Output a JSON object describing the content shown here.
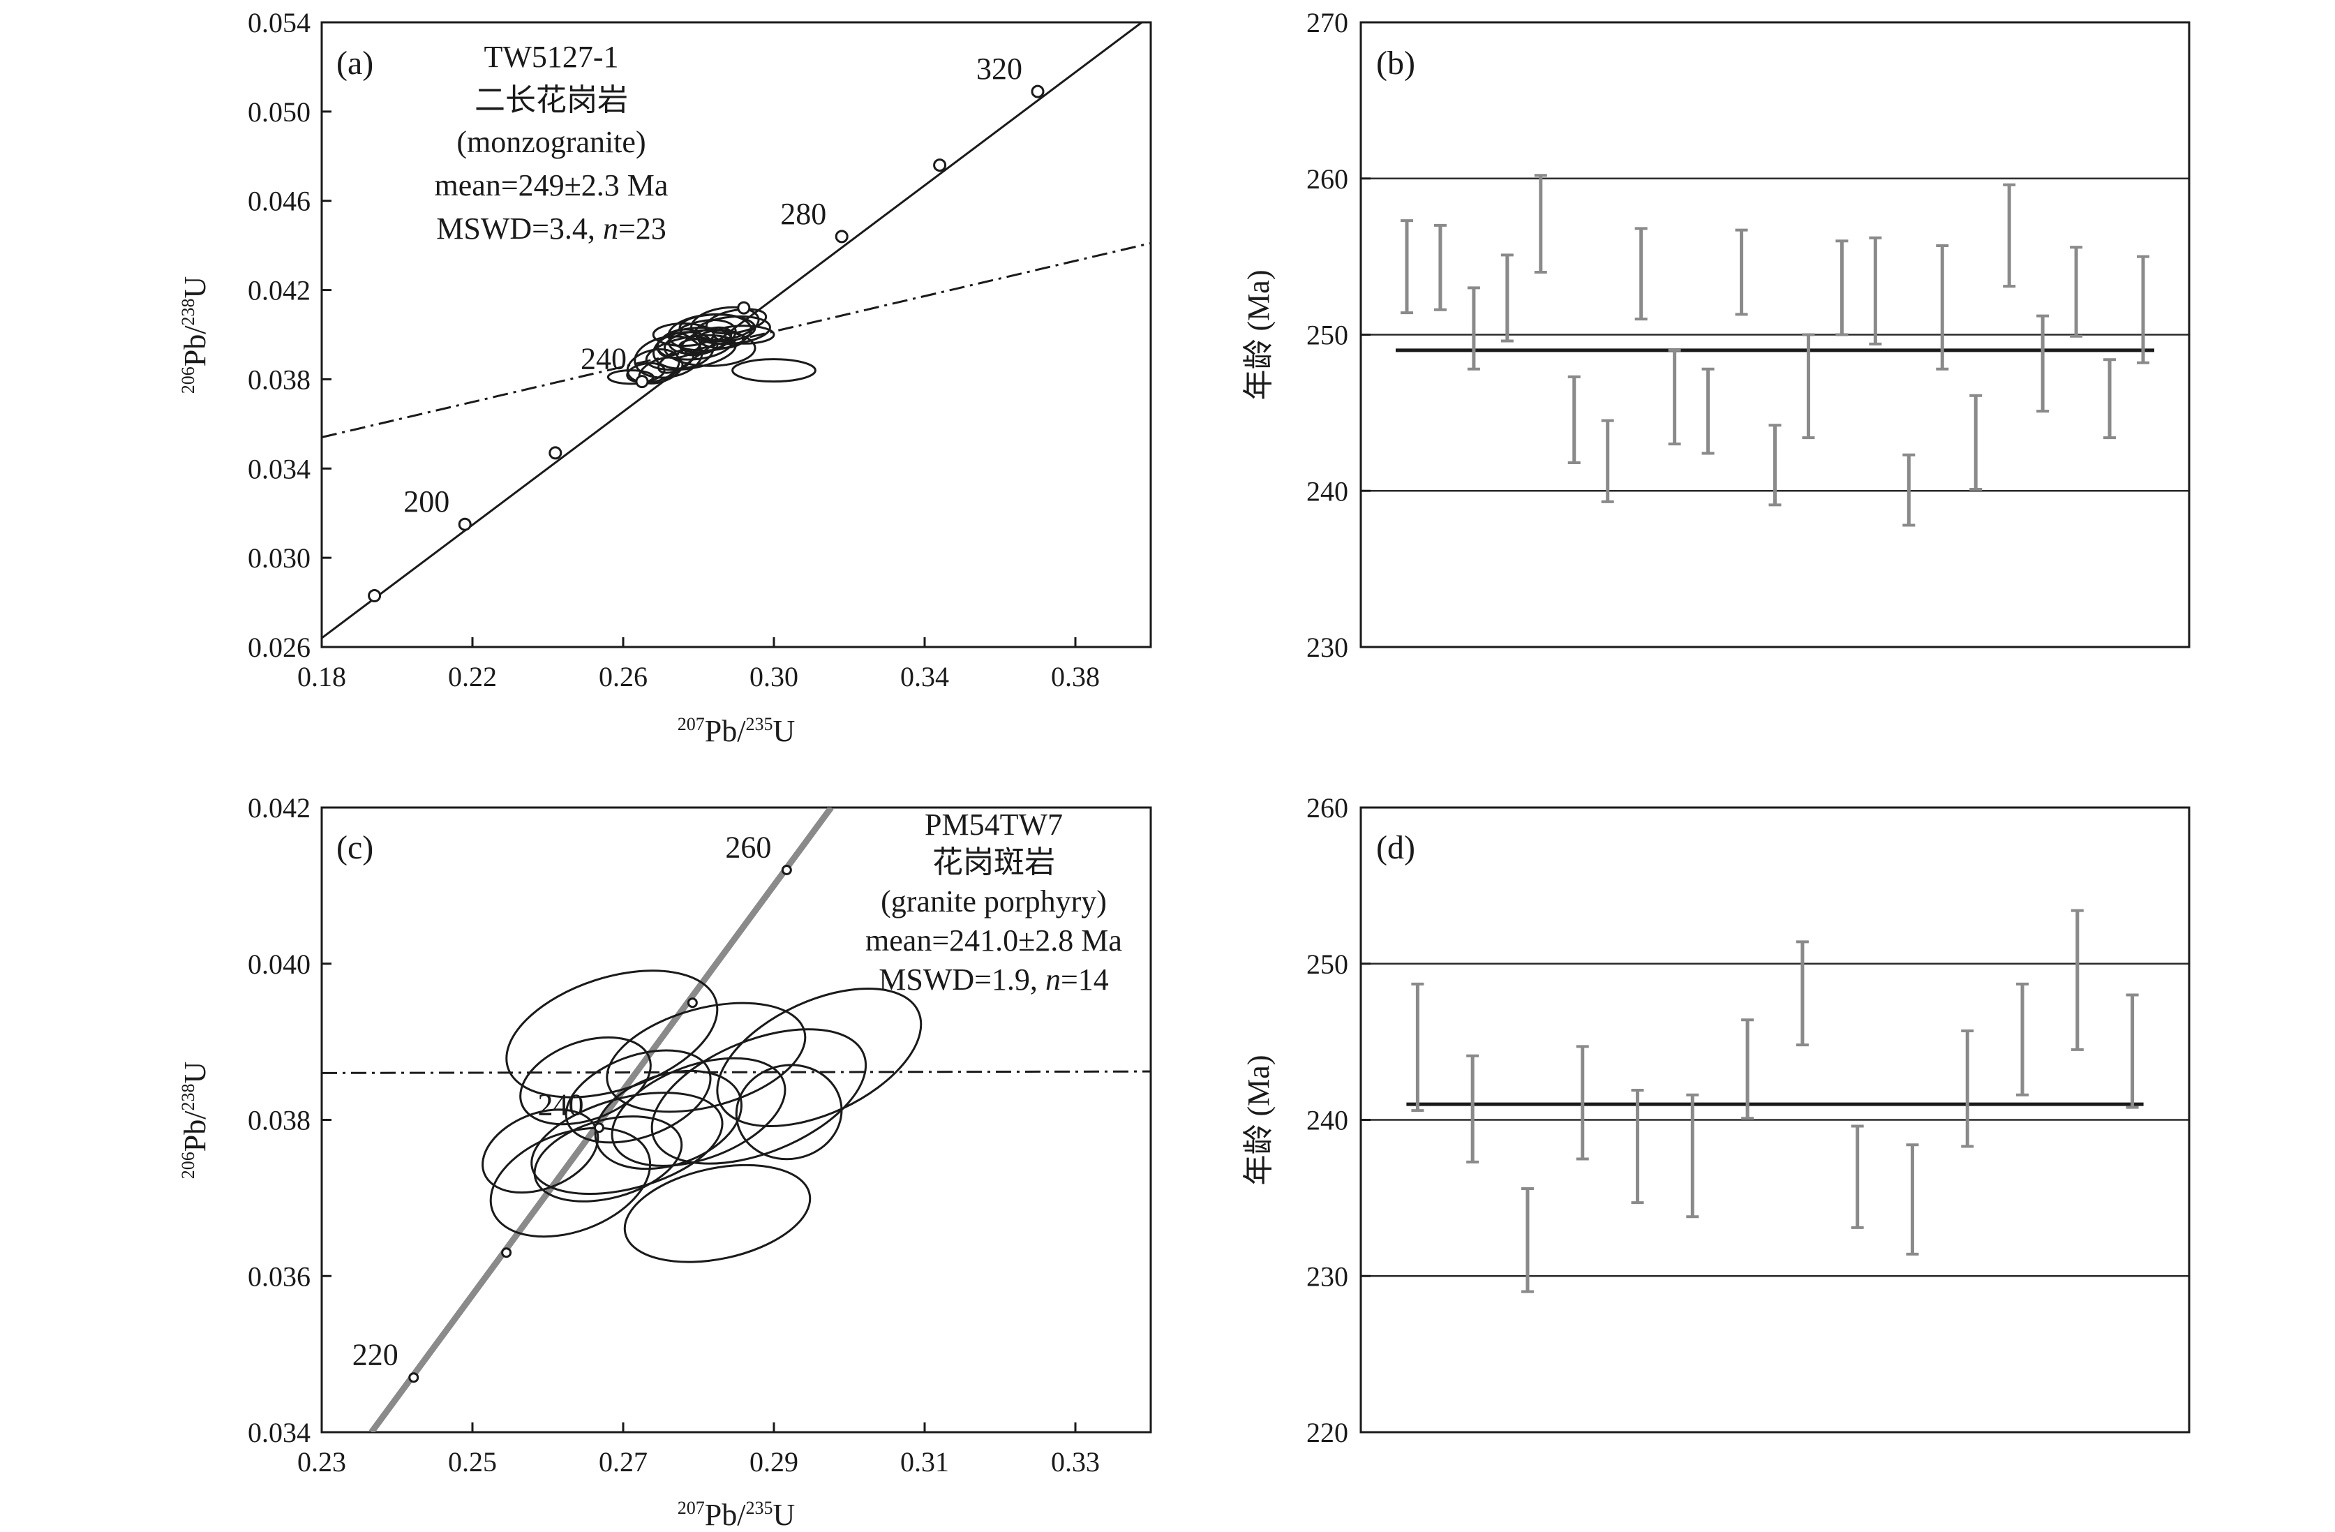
{
  "chart_data": [
    {
      "id": "a",
      "type": "concordia",
      "panel_label": "(a)",
      "xlabel": {
        "sup1": "207",
        "base1": "Pb/",
        "sup2": "235",
        "base2": "U"
      },
      "ylabel": {
        "sup1": "206",
        "base1": "Pb/",
        "sup2": "238",
        "base2": "U"
      },
      "xlim": [
        0.18,
        0.4
      ],
      "ylim": [
        0.026,
        0.054
      ],
      "xticks": [
        "0.18",
        "0.22",
        "0.26",
        "0.30",
        "0.34",
        "0.38"
      ],
      "yticks": [
        "0.026",
        "0.030",
        "0.034",
        "0.038",
        "0.042",
        "0.046",
        "0.050",
        "0.054"
      ],
      "annotation": [
        "TW5127-1",
        "二长花岗岩",
        "(monzogranite)",
        "mean=249±2.3 Ma"
      ],
      "annotation_mswd": {
        "prefix": "MSWD=3.4, ",
        "italic": "n",
        "suffix": "=23"
      },
      "concordia_points": [
        {
          "age": "180",
          "x": 0.194,
          "y": 0.0283,
          "label": ""
        },
        {
          "age": "200",
          "x": 0.218,
          "y": 0.0315,
          "label": "200"
        },
        {
          "age": "220",
          "x": 0.242,
          "y": 0.0347,
          "label": ""
        },
        {
          "age": "240",
          "x": 0.265,
          "y": 0.0379,
          "label": "240"
        },
        {
          "age": "260",
          "x": 0.292,
          "y": 0.0412,
          "label": ""
        },
        {
          "age": "280",
          "x": 0.318,
          "y": 0.0444,
          "label": "280"
        },
        {
          "age": "300",
          "x": 0.344,
          "y": 0.0476,
          "label": ""
        },
        {
          "age": "320",
          "x": 0.37,
          "y": 0.0509,
          "label": "320"
        }
      ],
      "concordia_line": [
        [
          0.18,
          0.0264
        ],
        [
          0.4,
          0.0543
        ]
      ],
      "discordia_line": [
        [
          0.18,
          0.0354
        ],
        [
          0.4,
          0.0441
        ]
      ],
      "ellipses": [
        {
          "x": 0.262,
          "y": 0.0381,
          "rx": 0.006,
          "ry": 0.0003,
          "angle": 0
        },
        {
          "x": 0.268,
          "y": 0.0386,
          "rx": 0.007,
          "ry": 0.0007,
          "angle": 15
        },
        {
          "x": 0.272,
          "y": 0.039,
          "rx": 0.009,
          "ry": 0.0009,
          "angle": 10
        },
        {
          "x": 0.276,
          "y": 0.0393,
          "rx": 0.008,
          "ry": 0.0008,
          "angle": 8
        },
        {
          "x": 0.279,
          "y": 0.0396,
          "rx": 0.01,
          "ry": 0.0007,
          "angle": 5
        },
        {
          "x": 0.281,
          "y": 0.0399,
          "rx": 0.009,
          "ry": 0.0007,
          "angle": 12
        },
        {
          "x": 0.283,
          "y": 0.0401,
          "rx": 0.011,
          "ry": 0.0008,
          "angle": 5
        },
        {
          "x": 0.285,
          "y": 0.0403,
          "rx": 0.01,
          "ry": 0.0006,
          "angle": 0
        },
        {
          "x": 0.287,
          "y": 0.0405,
          "rx": 0.009,
          "ry": 0.0007,
          "angle": 8
        },
        {
          "x": 0.289,
          "y": 0.0402,
          "rx": 0.01,
          "ry": 0.0006,
          "angle": 5
        },
        {
          "x": 0.278,
          "y": 0.0392,
          "rx": 0.012,
          "ry": 0.0007,
          "angle": 10
        },
        {
          "x": 0.283,
          "y": 0.0394,
          "rx": 0.012,
          "ry": 0.0008,
          "angle": 0
        },
        {
          "x": 0.276,
          "y": 0.04,
          "rx": 0.008,
          "ry": 0.0005,
          "angle": 0
        },
        {
          "x": 0.282,
          "y": 0.0397,
          "rx": 0.007,
          "ry": 0.0005,
          "angle": 20
        },
        {
          "x": 0.27,
          "y": 0.0384,
          "rx": 0.006,
          "ry": 0.0005,
          "angle": 20
        },
        {
          "x": 0.3,
          "y": 0.0384,
          "rx": 0.011,
          "ry": 0.0005,
          "angle": 0
        },
        {
          "x": 0.292,
          "y": 0.04,
          "rx": 0.008,
          "ry": 0.0004,
          "angle": 0
        },
        {
          "x": 0.286,
          "y": 0.0398,
          "rx": 0.006,
          "ry": 0.0004,
          "angle": 0
        },
        {
          "x": 0.274,
          "y": 0.0388,
          "rx": 0.005,
          "ry": 0.0004,
          "angle": 25
        },
        {
          "x": 0.28,
          "y": 0.0395,
          "rx": 0.005,
          "ry": 0.0003,
          "angle": 0
        },
        {
          "x": 0.29,
          "y": 0.0406,
          "rx": 0.008,
          "ry": 0.0005,
          "angle": 10
        },
        {
          "x": 0.275,
          "y": 0.0396,
          "rx": 0.006,
          "ry": 0.0006,
          "angle": 15
        },
        {
          "x": 0.266,
          "y": 0.0383,
          "rx": 0.005,
          "ry": 0.0004,
          "angle": 10
        }
      ]
    },
    {
      "id": "b",
      "type": "weighted-mean",
      "panel_label": "(b)",
      "ylabel": "年龄 (Ma)",
      "ylim": [
        230,
        270
      ],
      "yticks": [
        "230",
        "240",
        "250",
        "260",
        "270"
      ],
      "gridlines": [
        240,
        250,
        260
      ],
      "mean": 249,
      "errors": [
        [
          251.4,
          257.3
        ],
        [
          251.6,
          257.0
        ],
        [
          247.8,
          253.0
        ],
        [
          249.6,
          255.1
        ],
        [
          254.0,
          260.2
        ],
        [
          241.8,
          247.3
        ],
        [
          239.3,
          244.5
        ],
        [
          251.0,
          256.8
        ],
        [
          243.0,
          249.0
        ],
        [
          242.4,
          247.8
        ],
        [
          251.3,
          256.7
        ],
        [
          239.1,
          244.2
        ],
        [
          243.4,
          250.0
        ],
        [
          250.0,
          256.0
        ],
        [
          249.4,
          256.2
        ],
        [
          237.8,
          242.3
        ],
        [
          247.8,
          255.7
        ],
        [
          240.1,
          246.1
        ],
        [
          253.1,
          259.6
        ],
        [
          245.1,
          251.2
        ],
        [
          249.9,
          255.6
        ],
        [
          243.4,
          248.4
        ],
        [
          248.2,
          255.0
        ]
      ]
    },
    {
      "id": "c",
      "type": "concordia",
      "panel_label": "(c)",
      "xlabel": {
        "sup1": "207",
        "base1": "Pb/",
        "sup2": "235",
        "base2": "U"
      },
      "ylabel": {
        "sup1": "206",
        "base1": "Pb/",
        "sup2": "238",
        "base2": "U"
      },
      "xlim": [
        0.23,
        0.34
      ],
      "ylim": [
        0.034,
        0.042
      ],
      "xticks": [
        "0.23",
        "0.25",
        "0.27",
        "0.29",
        "0.31",
        "0.33"
      ],
      "yticks": [
        "0.034",
        "0.036",
        "0.038",
        "0.040",
        "0.042"
      ],
      "annotation": [
        "PM54TW7",
        "花岗斑岩",
        "(granite porphyry)",
        "mean=241.0±2.8 Ma"
      ],
      "annotation_mswd": {
        "prefix": "MSWD=1.9, ",
        "italic": "n",
        "suffix": "=14"
      },
      "concordia_points": [
        {
          "age": "220",
          "x": 0.2422,
          "y": 0.0347,
          "label": "220"
        },
        {
          "age": "230",
          "x": 0.2545,
          "y": 0.0363,
          "label": ""
        },
        {
          "age": "240",
          "x": 0.2668,
          "y": 0.0379,
          "label": "240"
        },
        {
          "age": "250",
          "x": 0.2792,
          "y": 0.0395,
          "label": ""
        },
        {
          "age": "260",
          "x": 0.2917,
          "y": 0.0412,
          "label": "260"
        }
      ],
      "concordia_line": [
        [
          0.2366,
          0.034
        ],
        [
          0.2976,
          0.042
        ]
      ],
      "discordia_line": [
        [
          0.23,
          0.0386
        ],
        [
          0.34,
          0.03862
        ]
      ],
      "ellipses": [
        {
          "x": 0.2685,
          "y": 0.0391,
          "rx": 0.0145,
          "ry": 0.00072,
          "angle": 18
        },
        {
          "x": 0.281,
          "y": 0.0388,
          "rx": 0.0135,
          "ry": 0.00063,
          "angle": 15
        },
        {
          "x": 0.263,
          "y": 0.0372,
          "rx": 0.011,
          "ry": 0.00063,
          "angle": 20
        },
        {
          "x": 0.2705,
          "y": 0.0377,
          "rx": 0.013,
          "ry": 0.00058,
          "angle": 15
        },
        {
          "x": 0.2825,
          "y": 0.0368,
          "rx": 0.0125,
          "ry": 0.00058,
          "angle": 12
        },
        {
          "x": 0.296,
          "y": 0.0388,
          "rx": 0.0145,
          "ry": 0.00072,
          "angle": 25
        },
        {
          "x": 0.288,
          "y": 0.0383,
          "rx": 0.015,
          "ry": 0.00072,
          "angle": 22
        },
        {
          "x": 0.276,
          "y": 0.038,
          "rx": 0.01,
          "ry": 0.00058,
          "angle": 18
        },
        {
          "x": 0.265,
          "y": 0.0385,
          "rx": 0.009,
          "ry": 0.0005,
          "angle": 20
        },
        {
          "x": 0.259,
          "y": 0.0376,
          "rx": 0.008,
          "ry": 0.00048,
          "angle": 22
        },
        {
          "x": 0.28,
          "y": 0.0381,
          "rx": 0.012,
          "ry": 0.0006,
          "angle": 20
        },
        {
          "x": 0.272,
          "y": 0.0383,
          "rx": 0.01,
          "ry": 0.00052,
          "angle": 20
        },
        {
          "x": 0.268,
          "y": 0.0375,
          "rx": 0.01,
          "ry": 0.0005,
          "angle": 15
        },
        {
          "x": 0.292,
          "y": 0.0381,
          "rx": 0.007,
          "ry": 0.0006,
          "angle": 10
        }
      ]
    },
    {
      "id": "d",
      "type": "weighted-mean",
      "panel_label": "(d)",
      "ylabel": "年龄 (Ma)",
      "ylim": [
        220,
        260
      ],
      "yticks": [
        "220",
        "230",
        "240",
        "250",
        "260"
      ],
      "gridlines": [
        230,
        240,
        250
      ],
      "mean": 241,
      "errors": [
        [
          240.6,
          248.7
        ],
        [
          237.3,
          244.1
        ],
        [
          229.0,
          235.6
        ],
        [
          237.5,
          244.7
        ],
        [
          234.7,
          241.9
        ],
        [
          233.8,
          241.6
        ],
        [
          240.1,
          246.4
        ],
        [
          244.8,
          251.4
        ],
        [
          233.1,
          239.6
        ],
        [
          231.4,
          238.4
        ],
        [
          238.3,
          245.7
        ],
        [
          241.6,
          248.7
        ],
        [
          244.5,
          253.4
        ],
        [
          240.8,
          248.0
        ]
      ]
    }
  ]
}
